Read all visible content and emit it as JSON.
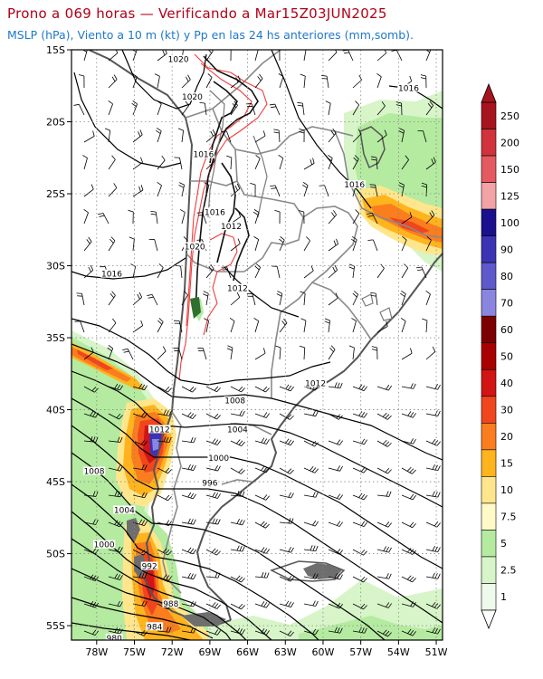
{
  "title": "Prono a 069 horas — Verificando a Mar15Z03JUN2025",
  "subtitle": "MSLP (hPa), Viento a 10 m (kt) y Pp en las 24 hs anteriores (mm,somb).",
  "chart_data": {
    "type": "map",
    "lat_ticks": [
      "15S",
      "20S",
      "25S",
      "30S",
      "35S",
      "40S",
      "45S",
      "50S",
      "55S"
    ],
    "lon_ticks": [
      "78W",
      "75W",
      "72W",
      "69W",
      "66W",
      "63W",
      "60W",
      "57W",
      "54W",
      "51W"
    ],
    "lat_range": [
      -56,
      -15
    ],
    "lon_range": [
      -80,
      -50.5
    ],
    "grid": true,
    "isobar_labels": [
      {
        "text": "1020",
        "lon": -71.5,
        "lat": -15.8
      },
      {
        "text": "1020",
        "lon": -70.4,
        "lat": -18.4
      },
      {
        "text": "1016",
        "lon": -53.2,
        "lat": -17.8
      },
      {
        "text": "1016",
        "lon": -69.5,
        "lat": -22.4
      },
      {
        "text": "1016",
        "lon": -57.5,
        "lat": -24.5
      },
      {
        "text": "1016",
        "lon": -68.6,
        "lat": -26.4
      },
      {
        "text": "1012",
        "lon": -67.3,
        "lat": -27.4
      },
      {
        "text": "1020",
        "lon": -70.2,
        "lat": -28.8
      },
      {
        "text": "1016",
        "lon": -76.8,
        "lat": -30.7
      },
      {
        "text": "1012",
        "lon": -66.8,
        "lat": -31.7
      },
      {
        "text": "1012",
        "lon": -60.6,
        "lat": -38.3
      },
      {
        "text": "1008",
        "lon": -67.0,
        "lat": -39.5
      },
      {
        "text": "1012",
        "lon": -73.0,
        "lat": -41.5
      },
      {
        "text": "1004",
        "lon": -66.8,
        "lat": -41.5
      },
      {
        "text": "1000",
        "lon": -68.3,
        "lat": -43.5
      },
      {
        "text": "1008",
        "lon": -78.2,
        "lat": -44.4
      },
      {
        "text": "996",
        "lon": -69.0,
        "lat": -45.2
      },
      {
        "text": "1004",
        "lon": -75.8,
        "lat": -47.1
      },
      {
        "text": "1000",
        "lon": -77.4,
        "lat": -49.5
      },
      {
        "text": "992",
        "lon": -73.8,
        "lat": -51.0
      },
      {
        "text": "988",
        "lon": -72.1,
        "lat": -53.6
      },
      {
        "text": "984",
        "lon": -73.4,
        "lat": -55.2
      },
      {
        "text": "980",
        "lon": -76.6,
        "lat": -56.0
      }
    ],
    "colorbar": {
      "labels": [
        "250",
        "200",
        "150",
        "125",
        "100",
        "90",
        "80",
        "70",
        "60",
        "50",
        "40",
        "30",
        "20",
        "15",
        "10",
        "7.5",
        "5",
        "2.5",
        "1"
      ],
      "colors": [
        "#a8141e",
        "#d0333b",
        "#e45a60",
        "#f2a3a6",
        "#1a0f8c",
        "#3c33b4",
        "#5e5acb",
        "#8a86e0",
        "#7d0000",
        "#a80000",
        "#d21414",
        "#f0461e",
        "#fa7d1e",
        "#ffb41e",
        "#ffe68c",
        "#fffac8",
        "#b4eba0",
        "#d7f5c8",
        "#eefaeb"
      ]
    }
  }
}
